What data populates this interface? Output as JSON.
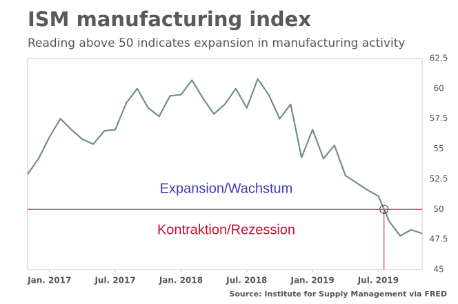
{
  "chart_data": {
    "type": "line",
    "title": "ISM manufacturing index",
    "subtitle": "Reading above 50 indicates expansion in manufacturing activity",
    "source": "Source: Institute for Supply Management via FRED",
    "categories": [
      null,
      null,
      "Jan. 2017",
      null,
      null,
      null,
      null,
      null,
      "Jul. 2017",
      null,
      null,
      null,
      null,
      null,
      "Jan. 2018",
      null,
      null,
      null,
      null,
      null,
      "Jul. 2018",
      null,
      null,
      null,
      null,
      null,
      "Jan. 2019",
      null,
      null,
      null,
      null,
      null,
      "Jul. 2019",
      null,
      null,
      null,
      null
    ],
    "series": [
      {
        "name": "ISM manufacturing index",
        "color": "#6f8f85",
        "values": [
          52.9,
          54.2,
          56.0,
          57.5,
          56.6,
          55.8,
          55.4,
          56.5,
          56.6,
          58.8,
          60.0,
          58.4,
          57.7,
          59.4,
          59.5,
          60.7,
          59.2,
          57.9,
          58.7,
          60.0,
          58.4,
          60.8,
          59.5,
          57.5,
          58.7,
          54.3,
          56.6,
          54.2,
          55.3,
          52.8,
          52.2,
          51.6,
          51.1,
          49.0,
          47.8,
          48.3,
          48.0
        ]
      }
    ],
    "ylim": [
      45,
      62.5
    ],
    "yticks": [
      45,
      47.5,
      50,
      52.5,
      55,
      57.5,
      60,
      62.5
    ],
    "y_axis_side": "right",
    "grid": false,
    "reference_line": {
      "value": 50,
      "color": "#c8102e"
    },
    "annotations": [
      {
        "text": "Expansion/Wachstum",
        "color": "#3c3cb0"
      },
      {
        "text": "Kontraktion/Rezession",
        "color": "#c8102e"
      }
    ]
  }
}
